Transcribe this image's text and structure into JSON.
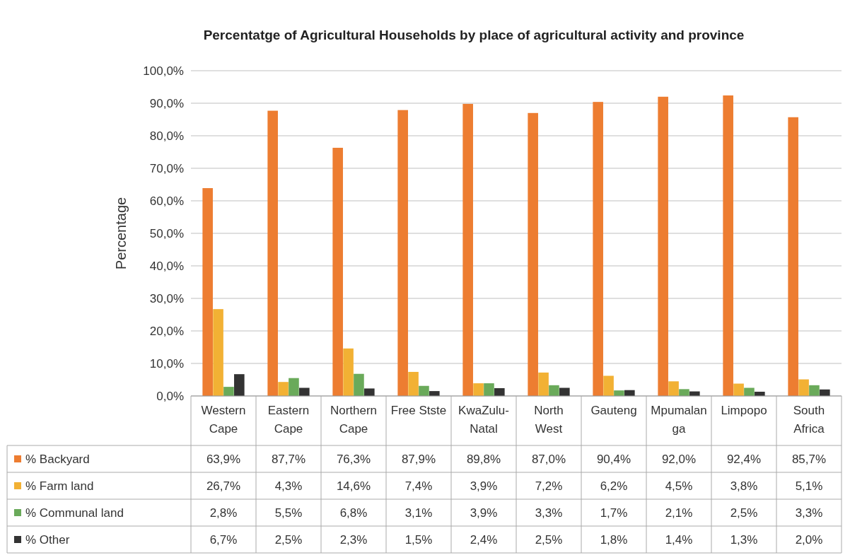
{
  "chart_data": {
    "type": "bar",
    "title": "Percentatge of Agricultural Households by place of agricultural activity and province",
    "ylabel": "Percentage",
    "categories": [
      "Western Cape",
      "Eastern Cape",
      "Northern Cape",
      "Free Stste",
      "KwaZulu-Natal",
      "North West",
      "Gauteng",
      "Mpumalanga",
      "Limpopo",
      "South Africa"
    ],
    "series": [
      {
        "name": "% Backyard",
        "color": "#ed7d31",
        "values": [
          63.9,
          87.7,
          76.3,
          87.9,
          89.8,
          87.0,
          90.4,
          92.0,
          92.4,
          85.7
        ],
        "value_labels": [
          "63,9%",
          "87,7%",
          "76,3%",
          "87,9%",
          "89,8%",
          "87,0%",
          "90,4%",
          "92,0%",
          "92,4%",
          "85,7%"
        ]
      },
      {
        "name": "% Farm land",
        "color": "#f2b134",
        "values": [
          26.7,
          4.3,
          14.6,
          7.4,
          3.9,
          7.2,
          6.2,
          4.5,
          3.8,
          5.1
        ],
        "value_labels": [
          "26,7%",
          "4,3%",
          "14,6%",
          "7,4%",
          "3,9%",
          "7,2%",
          "6,2%",
          "4,5%",
          "3,8%",
          "5,1%"
        ]
      },
      {
        "name": "% Communal land",
        "color": "#6aaa5a",
        "values": [
          2.8,
          5.5,
          6.8,
          3.1,
          3.9,
          3.3,
          1.7,
          2.1,
          2.5,
          3.3
        ],
        "value_labels": [
          "2,8%",
          "5,5%",
          "6,8%",
          "3,1%",
          "3,9%",
          "3,3%",
          "1,7%",
          "2,1%",
          "2,5%",
          "3,3%"
        ]
      },
      {
        "name": "% Other",
        "color": "#333333",
        "values": [
          6.7,
          2.5,
          2.3,
          1.5,
          2.4,
          2.5,
          1.8,
          1.4,
          1.3,
          2.0
        ],
        "value_labels": [
          "6,7%",
          "2,5%",
          "2,3%",
          "1,5%",
          "2,4%",
          "2,5%",
          "1,8%",
          "1,4%",
          "1,3%",
          "2,0%"
        ]
      }
    ],
    "ylim": [
      0,
      100
    ],
    "yticks": [
      {
        "value": 0,
        "label": "0,0%"
      },
      {
        "value": 10,
        "label": "10,0%"
      },
      {
        "value": 20,
        "label": "20,0%"
      },
      {
        "value": 30,
        "label": "30,0%"
      },
      {
        "value": 40,
        "label": "40,0%"
      },
      {
        "value": 50,
        "label": "50,0%"
      },
      {
        "value": 60,
        "label": "60,0%"
      },
      {
        "value": 70,
        "label": "70,0%"
      },
      {
        "value": 80,
        "label": "80,0%"
      },
      {
        "value": 90,
        "label": "90,0%"
      },
      {
        "value": 100,
        "label": "100,0%"
      }
    ],
    "grid": "y",
    "legend": "bottom"
  }
}
